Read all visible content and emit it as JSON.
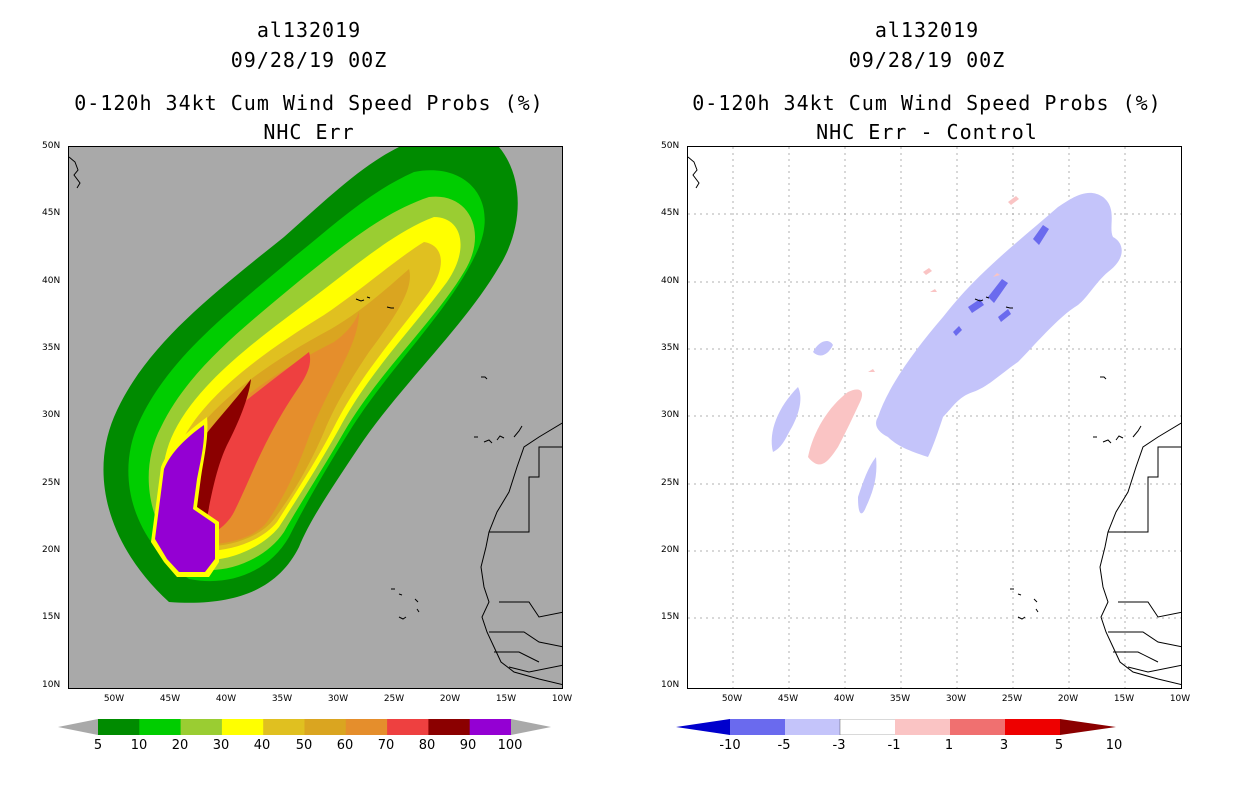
{
  "left_panel": {
    "storm_id": "al132019",
    "datetime": "09/28/19 00Z",
    "title": "0-120h 34kt Cum Wind Speed Probs (%)",
    "subtitle": "NHC Err",
    "lat_labels": [
      "50N",
      "45N",
      "40N",
      "35N",
      "30N",
      "25N",
      "20N",
      "15N",
      "10N"
    ],
    "lon_labels": [
      "50W",
      "45W",
      "40W",
      "35W",
      "30W",
      "25W",
      "20W",
      "15W",
      "10W"
    ],
    "colorbar": {
      "colors": [
        "#008b00",
        "#00cd00",
        "#9acd32",
        "#ffff00",
        "#e0c020",
        "#daa520",
        "#e58e2c",
        "#ee4040",
        "#8b0000",
        "#9400d3"
      ],
      "labels": [
        "5",
        "10",
        "20",
        "30",
        "40",
        "50",
        "60",
        "70",
        "80",
        "90",
        "100"
      ]
    }
  },
  "right_panel": {
    "storm_id": "al132019",
    "datetime": "09/28/19 00Z",
    "title": "0-120h 34kt Cum Wind Speed Probs (%)",
    "subtitle": "NHC Err - Control",
    "lat_labels": [
      "50N",
      "45N",
      "40N",
      "35N",
      "30N",
      "25N",
      "20N",
      "15N",
      "10N"
    ],
    "lon_labels": [
      "50W",
      "45W",
      "40W",
      "35W",
      "30W",
      "25W",
      "20W",
      "15W",
      "10W"
    ],
    "colorbar": {
      "colors": [
        "#0000cd",
        "#6a6aee",
        "#c4c4fa",
        "#ffffff",
        "#fac4c4",
        "#f07070",
        "#ee0000",
        "#8b0000"
      ],
      "labels": [
        "-10",
        "-5",
        "-3",
        "-1",
        "1",
        "3",
        "5",
        "10"
      ]
    }
  }
}
